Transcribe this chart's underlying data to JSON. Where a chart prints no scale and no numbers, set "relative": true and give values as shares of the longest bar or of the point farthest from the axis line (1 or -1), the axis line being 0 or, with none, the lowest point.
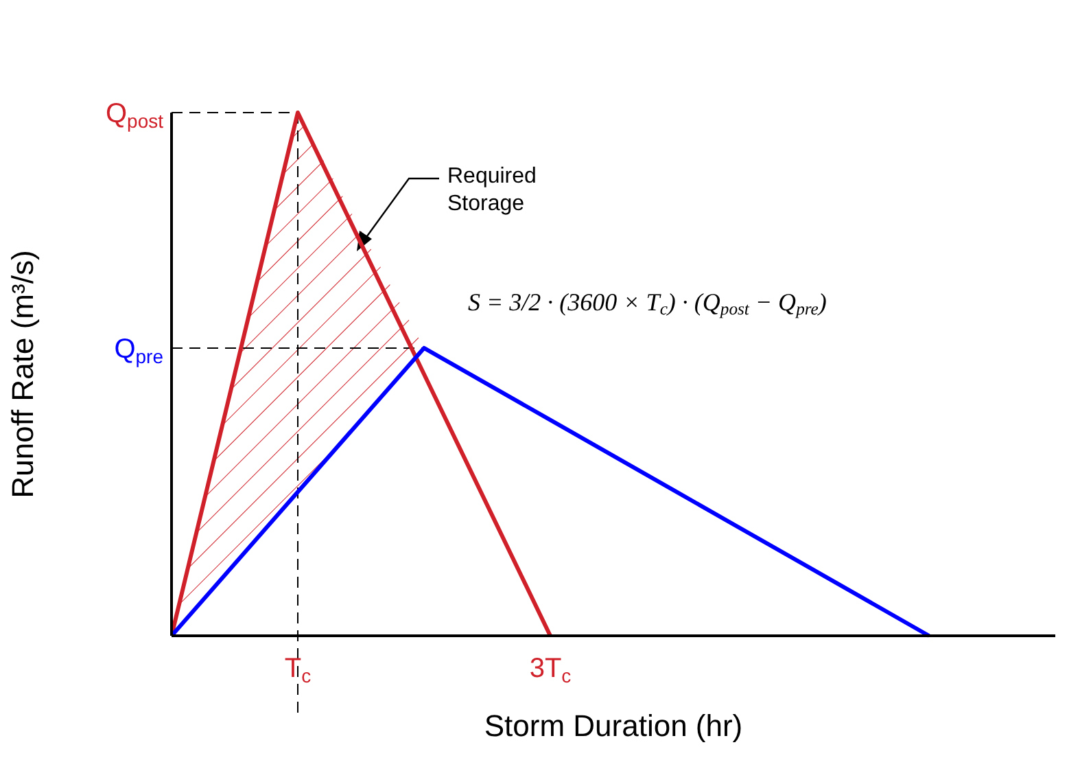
{
  "chart_data": {
    "type": "line",
    "relative": true,
    "xlabel": "Storm Duration (hr)",
    "ylabel": "Runoff Rate (m³/s)",
    "categories": [
      null,
      "T$_{c}$",
      null,
      "3T$_{c}$",
      null,
      null,
      null
    ],
    "grid": false,
    "legend": false,
    "marker": "none",
    "line_style": "solid",
    "series": [
      {
        "color": "#d0212a",
        "values": [
          0,
          1,
          0.5,
          0,
          null,
          null,
          null
        ]
      },
      {
        "color": "#0000ff",
        "values": [
          0,
          0.275,
          0.55,
          0.4125,
          0.275,
          0.1375,
          0
        ]
      }
    ],
    "ref_lines": [
      {
        "axis": "y",
        "value": 1,
        "label": "Q$_{post}$",
        "color": "#000000",
        "line_style": "dashed"
      },
      {
        "axis": "y",
        "value": 0.55,
        "label": "Q$_{pre}$",
        "color": "#000000",
        "line_style": "dashed"
      },
      {
        "axis": "x",
        "value": "T$_{c}$",
        "color": "#000000",
        "line_style": "dashed"
      }
    ],
    "annotations": [
      "Required Storage",
      "S = 3/2 · (3600 × T$_{c}$) · (Q$_{post}$ − Q$_{pre}$)"
    ]
  }
}
